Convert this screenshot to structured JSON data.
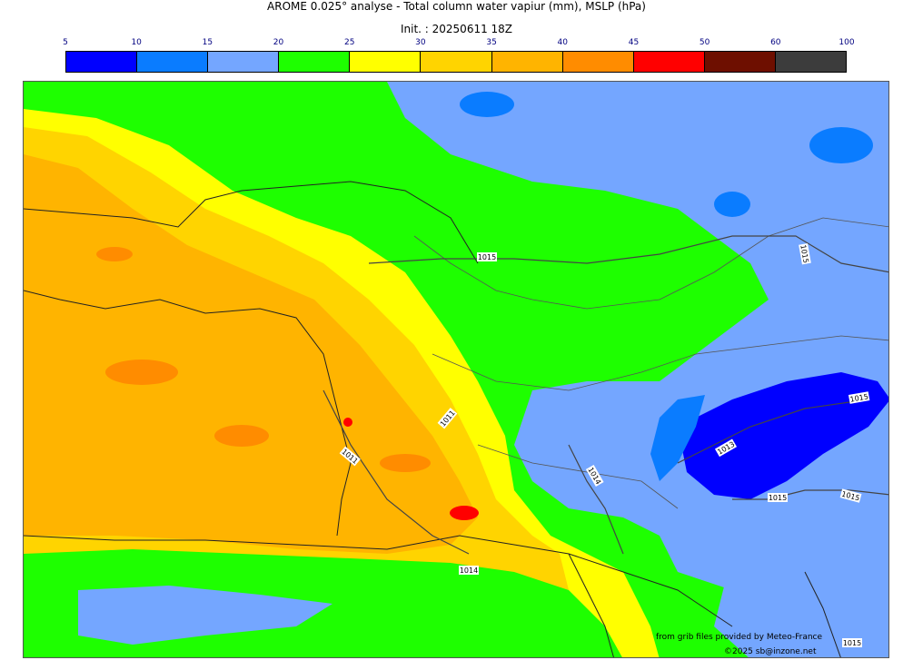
{
  "header": {
    "title": "AROME 0.025° analyse - Total column water vapiur (mm), MSLP (hPa)",
    "init": "Init. : 20250611 18Z"
  },
  "colorbar": {
    "ticks": [
      "5",
      "10",
      "15",
      "20",
      "25",
      "30",
      "35",
      "40",
      "45",
      "50",
      "60",
      "100"
    ],
    "colors": [
      "#0000ff",
      "#0a7cff",
      "#74a6ff",
      "#1eff00",
      "#ffff00",
      "#ffd400",
      "#ffb400",
      "#ff8c00",
      "#ff0000",
      "#6e0f00",
      "#3c3c3c"
    ]
  },
  "isobars": {
    "labels": [
      "1015",
      "1015",
      "1011",
      "1011",
      "1014",
      "1013",
      "1015",
      "1015",
      "1015",
      "1014",
      "1015"
    ]
  },
  "credits": {
    "source": "from grib files provided by Meteo-France",
    "copyright": "©2025 sb@inzone.net"
  }
}
